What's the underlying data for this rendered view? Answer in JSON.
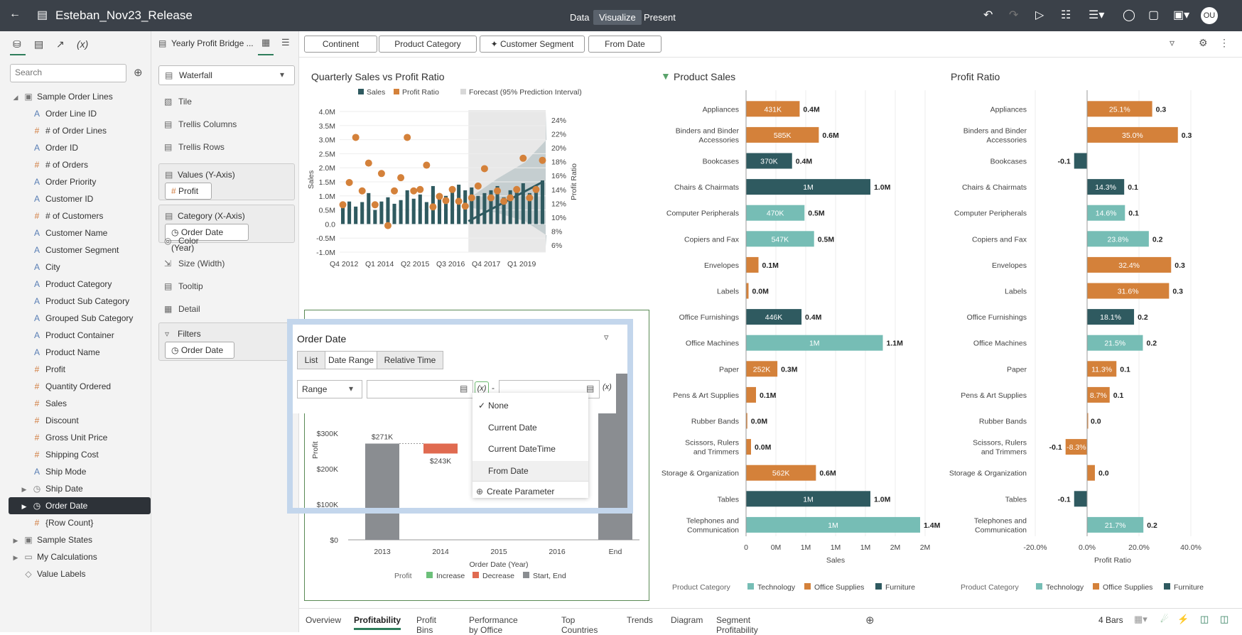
{
  "app": {
    "project_title": "Esteban_Nov23_Release",
    "nav": [
      "Data",
      "Visualize",
      "Present"
    ],
    "active_nav": "Visualize",
    "avatar_initials": "OU"
  },
  "left_panel": {
    "search_placeholder": "Search",
    "tree": [
      {
        "label": "Sample Order Lines",
        "type": "dataset",
        "level": 0,
        "expanded": true
      },
      {
        "label": "Order Line ID",
        "type": "text",
        "level": 1
      },
      {
        "label": "# of Order Lines",
        "type": "number",
        "level": 1
      },
      {
        "label": "Order ID",
        "type": "text",
        "level": 1
      },
      {
        "label": "# of Orders",
        "type": "number",
        "level": 1
      },
      {
        "label": "Order Priority",
        "type": "text",
        "level": 1
      },
      {
        "label": "Customer ID",
        "type": "text",
        "level": 1
      },
      {
        "label": "# of Customers",
        "type": "number",
        "level": 1
      },
      {
        "label": "Customer Name",
        "type": "text",
        "level": 1
      },
      {
        "label": "Customer Segment",
        "type": "text",
        "level": 1
      },
      {
        "label": "City",
        "type": "text",
        "level": 1
      },
      {
        "label": "Product Category",
        "type": "text",
        "level": 1
      },
      {
        "label": "Product Sub Category",
        "type": "text",
        "level": 1
      },
      {
        "label": "Grouped Sub Category",
        "type": "text",
        "level": 1
      },
      {
        "label": "Product Container",
        "type": "text",
        "level": 1
      },
      {
        "label": "Product Name",
        "type": "text",
        "level": 1
      },
      {
        "label": "Profit",
        "type": "number",
        "level": 1
      },
      {
        "label": "Quantity Ordered",
        "type": "number",
        "level": 1
      },
      {
        "label": "Sales",
        "type": "number",
        "level": 1
      },
      {
        "label": "Discount",
        "type": "number",
        "level": 1
      },
      {
        "label": "Gross Unit Price",
        "type": "number",
        "level": 1
      },
      {
        "label": "Shipping Cost",
        "type": "number",
        "level": 1
      },
      {
        "label": "Ship Mode",
        "type": "text",
        "level": 1
      },
      {
        "label": "Ship Date",
        "type": "date",
        "level": 1,
        "collapsible": true
      },
      {
        "label": "Order Date",
        "type": "date",
        "level": 1,
        "collapsible": true,
        "selected": true
      },
      {
        "label": "{Row Count}",
        "type": "number",
        "level": 1
      },
      {
        "label": "Sample States",
        "type": "dataset",
        "level": 0,
        "collapsible": true
      },
      {
        "label": "My Calculations",
        "type": "folder",
        "level": 0,
        "collapsible": true
      },
      {
        "label": "Value Labels",
        "type": "tag",
        "level": 0
      }
    ]
  },
  "grammar_panel": {
    "viz_name": "Yearly Profit Bridge ...",
    "viz_type": "Waterfall",
    "tile": "Tile",
    "trellis_columns": "Trellis Columns",
    "trellis_rows": "Trellis Rows",
    "values_label": "Values (Y-Axis)",
    "values_pill": "Profit",
    "category_label": "Category (X-Axis)",
    "category_pill": "Order Date (Year)",
    "color": "Color",
    "size": "Size (Width)",
    "tooltip": "Tooltip",
    "detail": "Detail",
    "filters_label": "Filters",
    "filters_pill": "Order Date"
  },
  "filter_bar": [
    "Continent",
    "Product Category",
    "Customer Segment",
    "From Date"
  ],
  "colors": {
    "dark_teal": "#2f5a60",
    "orange": "#d4813a",
    "light_teal": "#76bdb5",
    "increase": "#6cc07a",
    "decrease": "#e06a50",
    "start_end": "#8a8d91"
  },
  "chart_data": [
    {
      "type": "line",
      "title": "Quarterly Sales vs Profit Ratio",
      "legend": [
        "Sales",
        "Profit Ratio",
        "Forecast (95% Prediction Interval)"
      ],
      "ylabel": "Sales",
      "y2label": "Profit Ratio",
      "y_ticks": [
        "4.0M",
        "3.5M",
        "3.0M",
        "2.5M",
        "2.0M",
        "1.5M",
        "1.0M",
        "0.5M",
        "0.0",
        "-0.5M",
        "-1.0M"
      ],
      "y2_ticks": [
        "24%",
        "22%",
        "20%",
        "18%",
        "16%",
        "14%",
        "12%",
        "10%",
        "8%",
        "6%"
      ],
      "x_ticks": [
        "Q4 2012",
        "Q1 2014",
        "Q2 2015",
        "Q3 2016",
        "Q4 2017",
        "Q1 2019"
      ],
      "ylim": [
        -1.0,
        4.0
      ],
      "y2lim": [
        6,
        24
      ],
      "sales_m": [
        0.7,
        0.8,
        0.62,
        0.78,
        1.1,
        0.5,
        0.8,
        0.95,
        0.72,
        0.85,
        1.2,
        0.9,
        1.05,
        0.78,
        1.35,
        0.95,
        1.0,
        1.25,
        1.4,
        1.2,
        1.3,
        1.0,
        1.1,
        1.2,
        1.35,
        0.95,
        1.2,
        1.3,
        1.45,
        1.1,
        1.35,
        1.55
      ],
      "profit_ratio_pct": [
        11.8,
        15.0,
        21.5,
        13.8,
        17.8,
        11.8,
        16.3,
        8.8,
        13.8,
        15.7,
        21.5,
        13.8,
        14.0,
        17.5,
        11.5,
        13.0,
        12.4,
        14.0,
        12.3,
        11.6,
        12.8,
        14.5,
        17.0,
        12.8,
        13.8,
        12.3,
        12.8,
        14.0,
        18.5,
        12.8,
        14.0,
        18.2
      ],
      "forecast_start_index": 20
    },
    {
      "type": "bar",
      "title": "Product Sales",
      "xlabel": "Sales",
      "x_ticks": [
        "0",
        "0M",
        "1M",
        "1M",
        "1M",
        "2M",
        "2M"
      ],
      "legend_title": "Product Category",
      "legend": [
        "Technology",
        "Office Supplies",
        "Furniture"
      ],
      "categories": [
        "Appliances",
        "Binders and Binder Accessories",
        "Bookcases",
        "Chairs & Chairmats",
        "Computer Peripherals",
        "Copiers and Fax",
        "Envelopes",
        "Labels",
        "Office Furnishings",
        "Office Machines",
        "Paper",
        "Pens & Art Supplies",
        "Rubber Bands",
        "Scissors, Rulers and Trimmers",
        "Storage & Organization",
        "Tables",
        "Telephones and Communication"
      ],
      "group": [
        "Office Supplies",
        "Office Supplies",
        "Furniture",
        "Furniture",
        "Technology",
        "Technology",
        "Office Supplies",
        "Office Supplies",
        "Furniture",
        "Technology",
        "Office Supplies",
        "Office Supplies",
        "Office Supplies",
        "Office Supplies",
        "Office Supplies",
        "Furniture",
        "Technology"
      ],
      "values_k": [
        431,
        585,
        370,
        1000,
        470,
        547,
        100,
        20,
        446,
        1100,
        252,
        80,
        10,
        40,
        562,
        1000,
        1400
      ],
      "inner_labels": [
        "431K",
        "585K",
        "370K",
        "1M",
        "470K",
        "547K",
        "",
        "",
        "446K",
        "1M",
        "252K",
        "",
        "",
        "",
        "562K",
        "1M",
        "1M"
      ],
      "outer_labels": [
        "0.4M",
        "0.6M",
        "0.4M",
        "1.0M",
        "0.5M",
        "0.5M",
        "0.1M",
        "0.0M",
        "0.4M",
        "1.1M",
        "0.3M",
        "0.1M",
        "0.0M",
        "0.0M",
        "0.6M",
        "1.0M",
        "1.4M"
      ]
    },
    {
      "type": "bar",
      "title": "Profit Ratio",
      "xlabel": "Profit Ratio",
      "x_ticks": [
        "-20.0%",
        "0.0%",
        "20.0%",
        "40.0%"
      ],
      "legend_title": "Product Category",
      "legend": [
        "Technology",
        "Office Supplies",
        "Furniture"
      ],
      "categories": [
        "Appliances",
        "Binders and Binder Accessories",
        "Bookcases",
        "Chairs & Chairmats",
        "Computer Peripherals",
        "Copiers and Fax",
        "Envelopes",
        "Labels",
        "Office Furnishings",
        "Office Machines",
        "Paper",
        "Pens & Art Supplies",
        "Rubber Bands",
        "Scissors, Rulers and Trimmers",
        "Storage & Organization",
        "Tables",
        "Telephones and Communication"
      ],
      "group": [
        "Office Supplies",
        "Office Supplies",
        "Furniture",
        "Furniture",
        "Technology",
        "Technology",
        "Office Supplies",
        "Office Supplies",
        "Furniture",
        "Technology",
        "Office Supplies",
        "Office Supplies",
        "Office Supplies",
        "Office Supplies",
        "Office Supplies",
        "Furniture",
        "Technology"
      ],
      "values_pct": [
        25.1,
        35.0,
        -5.0,
        14.3,
        14.6,
        23.8,
        32.4,
        31.6,
        18.1,
        21.5,
        11.3,
        8.7,
        0.0,
        -8.3,
        3.0,
        -5.0,
        21.7
      ],
      "inner_labels": [
        "25.1%",
        "35.0%",
        "",
        "14.3%",
        "14.6%",
        "23.8%",
        "32.4%",
        "31.6%",
        "18.1%",
        "21.5%",
        "11.3%",
        "8.7%",
        "",
        "-8.3%",
        "",
        "",
        "21.7%"
      ],
      "outer_labels": [
        "0.3",
        "0.3",
        "-0.1",
        "0.1",
        "0.1",
        "0.2",
        "0.3",
        "0.3",
        "0.2",
        "0.2",
        "0.1",
        "0.1",
        "0.0",
        "-0.1",
        "0.0",
        "-0.1",
        "0.2"
      ]
    },
    {
      "type": "bar",
      "title": "Yearly Profit Bridge",
      "ylabel": "Profit",
      "xlabel": "Order Date (Year)",
      "categories": [
        "2013",
        "2014",
        "2015",
        "2016",
        "End"
      ],
      "y_ticks": [
        "$300K",
        "$200K",
        "$100K",
        "$0"
      ],
      "data_labels": [
        "$271K",
        "$243K"
      ],
      "legend_title": "Profit",
      "legend": [
        "Increase",
        "Decrease",
        "Start, End"
      ]
    }
  ],
  "popup": {
    "title": "Order Date",
    "tabs": [
      "List",
      "Date Range",
      "Relative Time"
    ],
    "active_tab": "Date Range",
    "range_select": "Range",
    "fx": "(x)",
    "dash": "-",
    "menu": [
      "None",
      "Current Date",
      "Current DateTime",
      "From Date",
      "Create Parameter"
    ],
    "checked": "None"
  },
  "bottom_tabs": [
    "Overview",
    "Profitability",
    "Profit Bins",
    "Performance by Office",
    "Top Countries",
    "Trends",
    "Diagram",
    "Segment Profitability"
  ],
  "active_bottom_tab": "Profitability",
  "bars_count": "4 Bars"
}
